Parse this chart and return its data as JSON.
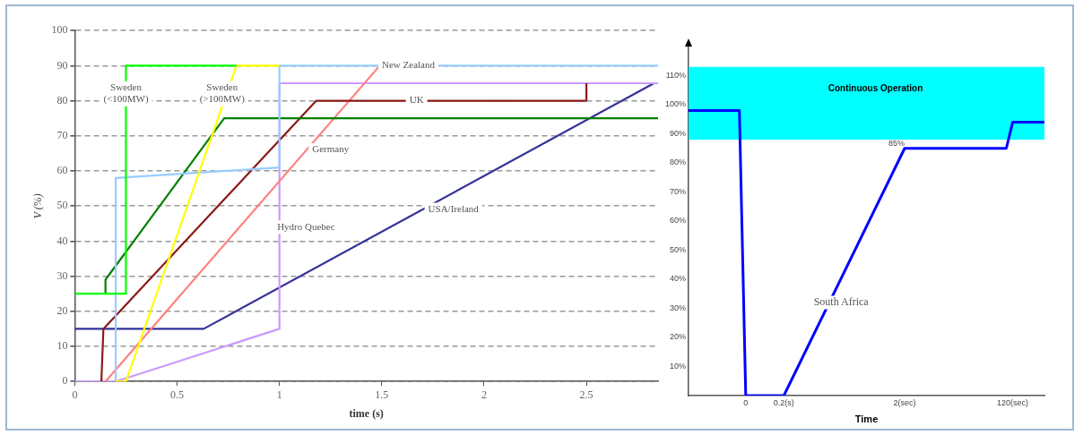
{
  "chart_data": [
    {
      "type": "line",
      "xlabel": "time (s)",
      "ylabel": "V (%)",
      "xlim": [
        0,
        2.85
      ],
      "xticks": [
        0,
        0.5,
        1,
        1.5,
        2,
        2.5
      ],
      "ylim": [
        0,
        100
      ],
      "yticks": [
        0,
        10,
        20,
        30,
        40,
        50,
        60,
        70,
        80,
        90,
        100
      ],
      "grid": "y",
      "series": [
        {
          "name": "Sweden (<100MW)",
          "color": "#00ff00",
          "x": [
            0,
            0.25,
            0.25,
            0.79
          ],
          "values": [
            25,
            25,
            90,
            90
          ]
        },
        {
          "name": "Sweden (>100MW)",
          "color": "#ffff00",
          "x": [
            0.2,
            0.25,
            0.79,
            1.0
          ],
          "values": [
            0,
            0,
            90,
            90
          ]
        },
        {
          "name": "New Zealand",
          "color": "#99ccff",
          "x": [
            0.2,
            0.2,
            1.0,
            1.0,
            2.85
          ],
          "values": [
            0,
            58,
            61,
            90,
            90
          ]
        },
        {
          "color": "#008000",
          "x": [
            0.15,
            0.15,
            0.73,
            2.85
          ],
          "values": [
            25,
            29,
            75,
            75
          ]
        },
        {
          "name": "UK",
          "color": "#8b1a1a",
          "x": [
            0.13,
            0.14,
            1.18,
            2.5,
            2.5
          ],
          "values": [
            0,
            15,
            80,
            80,
            85
          ]
        },
        {
          "name": "Germany",
          "color": "#ff8080",
          "x": [
            0.15,
            1.49
          ],
          "values": [
            0,
            90
          ]
        },
        {
          "name": "Hydro Quebec",
          "color": "#cc99ff",
          "x": [
            0,
            0.2,
            1.0,
            1.0,
            2.85
          ],
          "values": [
            0,
            0,
            15,
            85,
            85
          ]
        },
        {
          "name": "USA/Ireland",
          "color": "#333399",
          "x": [
            0,
            0.63,
            2.83
          ],
          "values": [
            15,
            15,
            85
          ]
        }
      ]
    },
    {
      "type": "line",
      "xlabel": "Time",
      "categories": [
        null,
        null,
        null,
        null,
        null,
        null,
        null,
        null,
        null,
        "0",
        null,
        null,
        null,
        null,
        null,
        "0.2(s)",
        null,
        null,
        null,
        null,
        null,
        null,
        null,
        null,
        null,
        null,
        null,
        null,
        null,
        null,
        null,
        null,
        null,
        null,
        "2(sec)",
        null,
        null,
        null,
        null,
        null,
        null,
        null,
        null,
        null,
        null,
        null,
        null,
        null,
        null,
        null,
        null,
        "120(sec)",
        null,
        null,
        null,
        null,
        null
      ],
      "ylim": [
        0,
        120
      ],
      "yticks": [
        {
          "value": 10,
          "label": "10%"
        },
        {
          "value": 20,
          "label": "20%"
        },
        {
          "value": 30,
          "label": "30%"
        },
        {
          "value": 40,
          "label": "40%"
        },
        {
          "value": 50,
          "label": "50%"
        },
        {
          "value": 60,
          "label": "60%"
        },
        {
          "value": 70,
          "label": "70%"
        },
        {
          "value": 80,
          "label": "80%"
        },
        {
          "value": 90,
          "label": "90%"
        },
        {
          "value": 100,
          "label": "100%"
        },
        {
          "value": 110,
          "label": "110%"
        }
      ],
      "series": [
        {
          "name": "South Africa",
          "color": "#0000ff",
          "values": [
            98,
            null,
            null,
            null,
            null,
            null,
            null,
            null,
            98,
            0,
            null,
            null,
            null,
            null,
            null,
            0,
            null,
            null,
            null,
            null,
            null,
            null,
            null,
            null,
            null,
            null,
            null,
            null,
            null,
            null,
            null,
            null,
            null,
            null,
            85,
            null,
            null,
            null,
            null,
            null,
            null,
            null,
            null,
            null,
            null,
            null,
            null,
            null,
            null,
            null,
            85,
            94,
            null,
            null,
            null,
            null,
            94
          ]
        }
      ],
      "bands": [
        {
          "axis": "y",
          "from": 88,
          "to": 113,
          "label": "Continuous Operation",
          "color": "#00ffff"
        }
      ],
      "annotations": [
        {
          "text": "85%",
          "x": "2(sec)",
          "y": 85
        }
      ]
    }
  ]
}
